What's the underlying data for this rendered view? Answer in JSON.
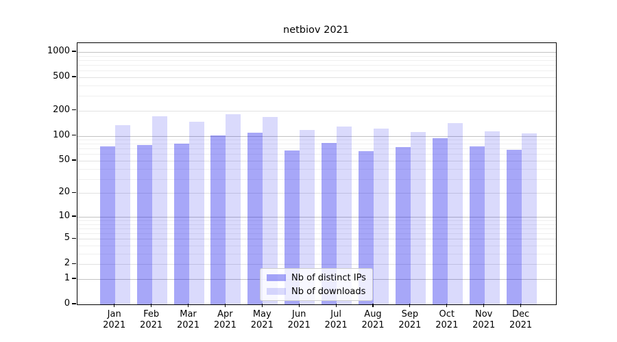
{
  "chart_data": {
    "type": "bar",
    "title": "netbiov 2021",
    "categories": [
      "Jan",
      "Feb",
      "Mar",
      "Apr",
      "May",
      "Jun",
      "Jul",
      "Aug",
      "Sep",
      "Oct",
      "Nov",
      "Dec"
    ],
    "x_tick_year": "2021",
    "series": [
      {
        "name": "Nb of distinct IPs",
        "color": "rgba(10,10,235,0.36)",
        "values": [
          74,
          78,
          80,
          101,
          108,
          67,
          82,
          65,
          73,
          93,
          74,
          68
        ]
      },
      {
        "name": "Nb of downloads",
        "color": "rgba(10,10,235,0.15)",
        "values": [
          133,
          171,
          147,
          182,
          169,
          117,
          128,
          121,
          112,
          141,
          114,
          106
        ]
      }
    ],
    "yscale": "log1p",
    "ylim": [
      0,
      1280
    ],
    "yticks": [
      1000,
      500,
      200,
      100,
      50,
      20,
      10,
      5,
      2,
      1,
      0
    ],
    "yticks_decade": [
      1000,
      100,
      10,
      1
    ],
    "minor_yticks": [
      900,
      800,
      700,
      600,
      400,
      300,
      90,
      80,
      70,
      60,
      40,
      30,
      9,
      8,
      7,
      6,
      4,
      3
    ],
    "grid": true,
    "legend": {
      "location": "lower center",
      "labels": [
        "Nb of distinct IPs",
        "Nb of downloads"
      ]
    }
  },
  "colors": {
    "ips_bar": "rgba(10,10,235,0.36)",
    "downloads_bar": "rgba(10,10,235,0.15)",
    "grid_decade": "#c2c2c2",
    "grid_major": "#e1e1e1",
    "grid_minor": "#efefef",
    "spine": "#000000",
    "background": "#ffffff"
  }
}
